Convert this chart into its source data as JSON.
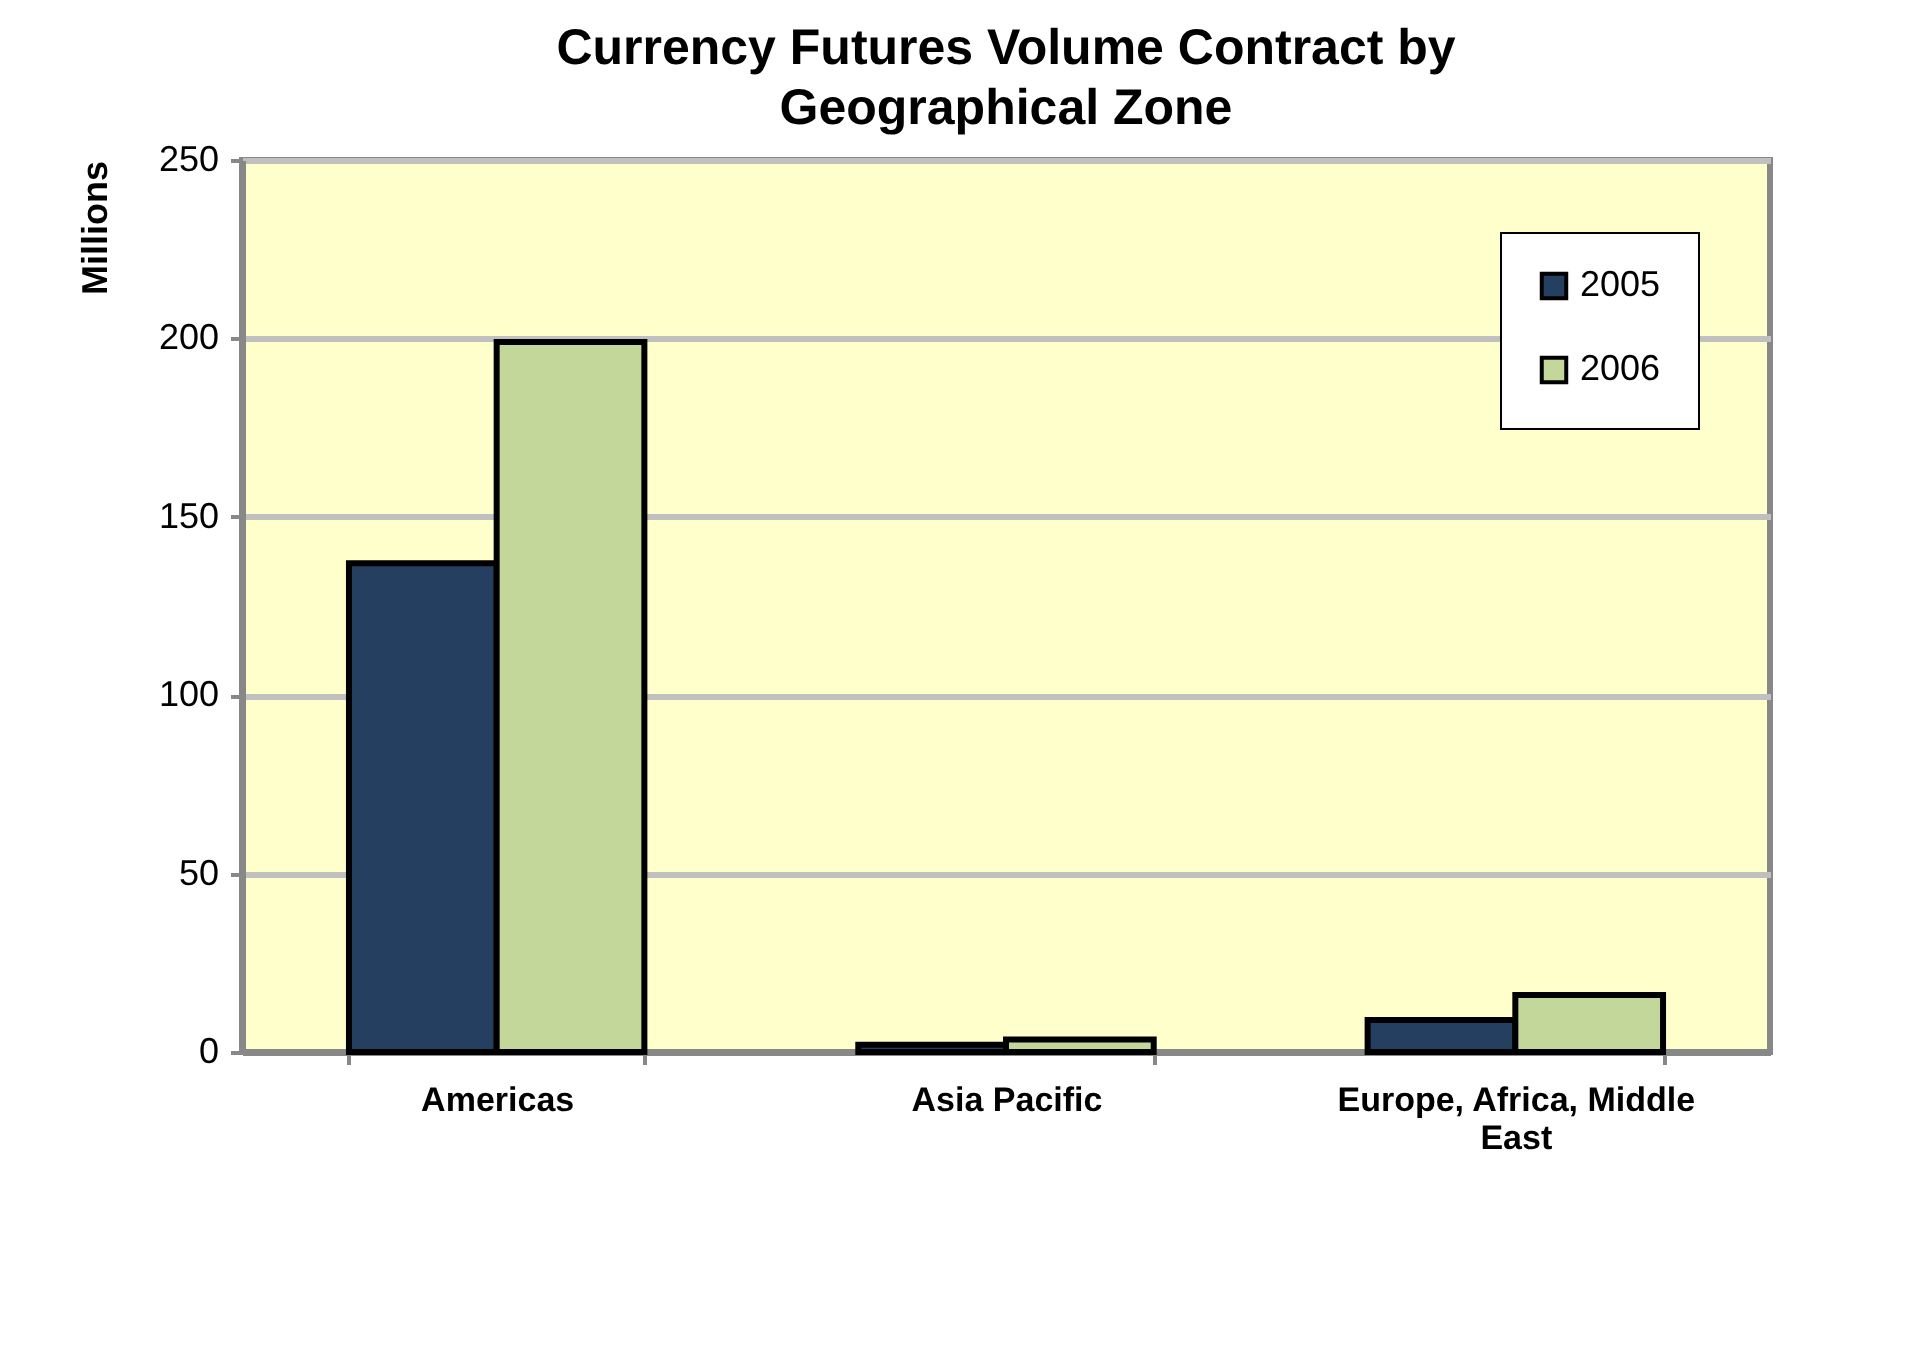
{
  "chart_data": {
    "type": "bar",
    "title": "Currency Futures Volume Contract by Geographical Zone",
    "ylabel": "Millions",
    "categories": [
      "Americas",
      "Asia Pacific",
      "Europe, Africa, Middle East"
    ],
    "series": [
      {
        "name": "2005",
        "color": "#243f60",
        "values": [
          137,
          2,
          9
        ]
      },
      {
        "name": "2006",
        "color": "#c4d79b",
        "values": [
          199,
          3.5,
          16
        ]
      }
    ],
    "ylim": [
      0,
      250
    ],
    "yticks": [
      0,
      50,
      100,
      150,
      200,
      250
    ],
    "grid": "y",
    "legend": "top right"
  }
}
